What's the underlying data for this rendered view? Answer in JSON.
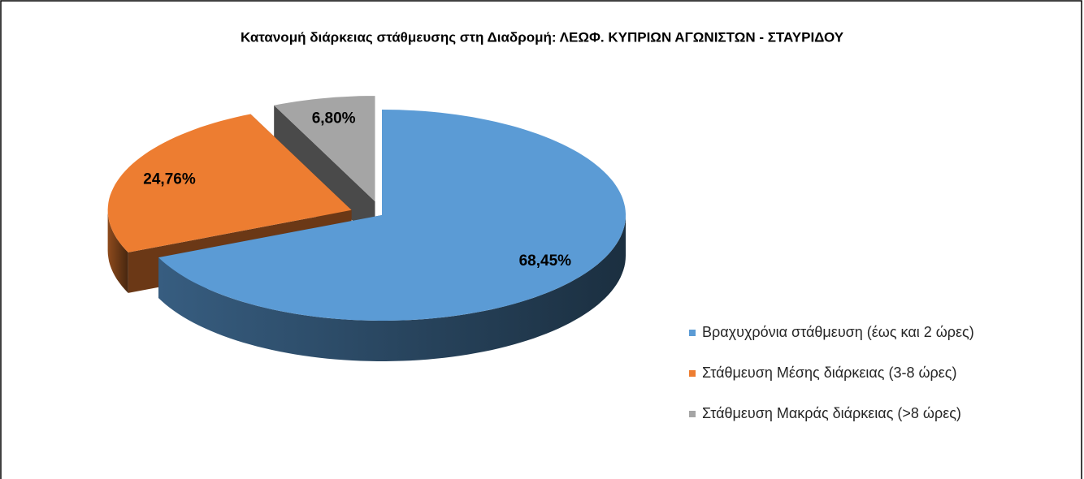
{
  "chart_data": {
    "type": "pie",
    "title": "Κατανομή διάρκειας στάθμευσης στη Διαδρομή: ΛΕΩΦ. ΚΥΠΡΙΩΝ ΑΓΩΝΙΣΤΩΝ - ΣΤΑΥΡΙΔΟΥ",
    "categories": [
      "Βραχυχρόνια στάθμευση (έως και 2 ώρες)",
      "Στάθμευση Μέσης διάρκειας (3-8 ώρες)",
      "Στάθμευση Μακράς διάρκειας (>8 ώρες)"
    ],
    "values": [
      68.45,
      24.76,
      6.8
    ],
    "value_labels": [
      "68,45%",
      "24,76%",
      "6,80%"
    ],
    "colors": [
      "#5b9bd5",
      "#ed7d31",
      "#a5a5a5"
    ],
    "legend": "right"
  }
}
